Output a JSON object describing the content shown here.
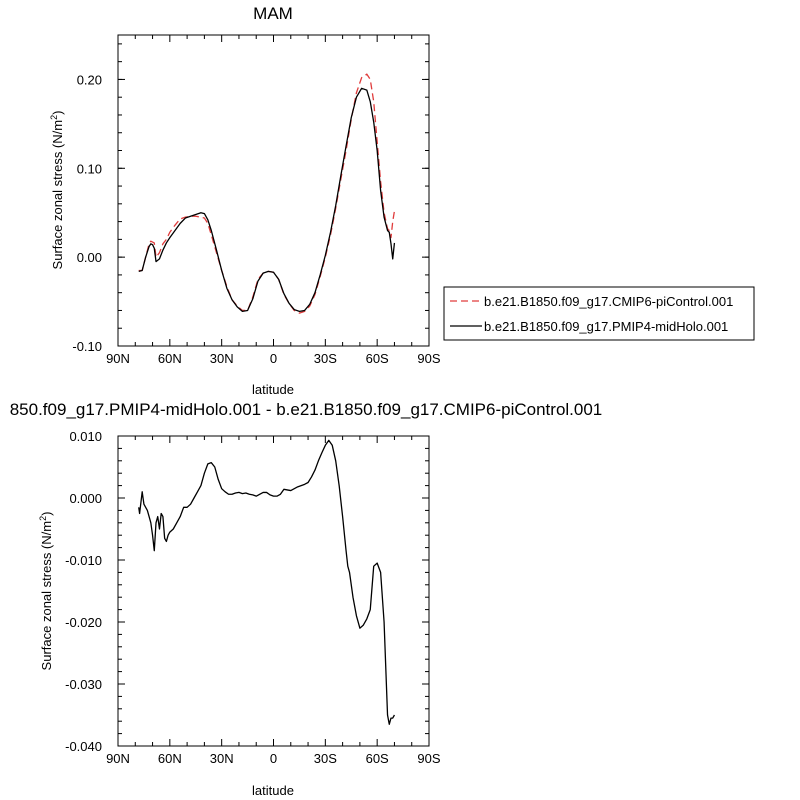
{
  "chart_data": [
    {
      "type": "line",
      "title": "MAM",
      "xlabel": "latitude",
      "ylabel": "Surface zonal stress (N/m",
      "ylabel_sup": "2",
      "ylabel_close": ")",
      "xlim": [
        90,
        -90
      ],
      "ylim": [
        -0.1,
        0.25
      ],
      "xticks": [
        90,
        60,
        30,
        0,
        -30,
        -60,
        -90
      ],
      "xticklabels": [
        "90N",
        "60N",
        "30N",
        "0",
        "30S",
        "60S",
        "90S"
      ],
      "yticks": [
        -0.1,
        0.0,
        0.1,
        0.2
      ],
      "yticklabels": [
        "-0.10",
        "0.00",
        "0.10",
        "0.20"
      ],
      "legend": "right",
      "series": [
        {
          "name": "b.e21.B1850.f09_g17.CMIP6-piControl.001",
          "color": "#e03c3c",
          "dash": "dashed",
          "x": [
            78,
            76,
            74,
            72,
            71,
            70,
            69,
            68,
            66,
            64,
            62,
            60,
            57,
            54,
            51,
            48,
            45,
            42,
            40,
            38,
            36,
            33,
            30,
            27,
            24,
            21,
            18,
            15,
            12,
            9,
            6,
            3,
            0,
            -3,
            -6,
            -9,
            -12,
            -15,
            -18,
            -21,
            -24,
            -27,
            -30,
            -33,
            -36,
            -39,
            -42,
            -45,
            -48,
            -51,
            -54,
            -56,
            -58,
            -60,
            -62,
            -64,
            -66,
            -67,
            -68,
            -69,
            -70
          ],
          "y": [
            -0.015,
            -0.015,
            0.0,
            0.015,
            0.018,
            0.017,
            0.016,
            0.0,
            0.005,
            0.015,
            0.02,
            0.028,
            0.036,
            0.043,
            0.045,
            0.046,
            0.046,
            0.045,
            0.044,
            0.038,
            0.025,
            0.005,
            -0.015,
            -0.033,
            -0.048,
            -0.055,
            -0.06,
            -0.06,
            -0.045,
            -0.025,
            -0.018,
            -0.016,
            -0.017,
            -0.025,
            -0.042,
            -0.052,
            -0.06,
            -0.063,
            -0.061,
            -0.055,
            -0.042,
            -0.022,
            0.0,
            0.025,
            0.055,
            0.088,
            0.12,
            0.155,
            0.185,
            0.202,
            0.206,
            0.2,
            0.175,
            0.13,
            0.085,
            0.05,
            0.032,
            0.03,
            0.022,
            0.04,
            0.052
          ]
        },
        {
          "name": "b.e21.B1850.f09_g17.PMIP4-midHolo.001",
          "color": "#000000",
          "dash": "solid",
          "x": [
            78,
            76,
            74,
            72,
            71,
            70,
            69,
            68,
            66,
            64,
            62,
            60,
            57,
            54,
            51,
            48,
            45,
            42,
            40,
            38,
            36,
            33,
            30,
            27,
            24,
            21,
            18,
            15,
            12,
            9,
            6,
            3,
            0,
            -3,
            -6,
            -9,
            -12,
            -15,
            -18,
            -21,
            -24,
            -27,
            -30,
            -33,
            -36,
            -39,
            -42,
            -45,
            -48,
            -51,
            -54,
            -56,
            -58,
            -60,
            -62,
            -64,
            -66,
            -67,
            -68,
            -69,
            -70
          ],
          "y": [
            -0.016,
            -0.015,
            0.0,
            0.012,
            0.015,
            0.014,
            0.01,
            -0.005,
            -0.002,
            0.008,
            0.016,
            0.022,
            0.03,
            0.038,
            0.044,
            0.046,
            0.048,
            0.05,
            0.049,
            0.042,
            0.03,
            0.008,
            -0.015,
            -0.035,
            -0.048,
            -0.056,
            -0.061,
            -0.06,
            -0.047,
            -0.027,
            -0.018,
            -0.016,
            -0.017,
            -0.025,
            -0.041,
            -0.052,
            -0.059,
            -0.061,
            -0.06,
            -0.053,
            -0.04,
            -0.02,
            0.002,
            0.028,
            0.058,
            0.092,
            0.125,
            0.157,
            0.18,
            0.19,
            0.188,
            0.175,
            0.152,
            0.12,
            0.075,
            0.045,
            0.03,
            0.028,
            0.015,
            -0.002,
            0.016
          ]
        }
      ]
    },
    {
      "type": "line",
      "title": "850.f09_g17.PMIP4-midHolo.001 - b.e21.B1850.f09_g17.CMIP6-piControl.001",
      "xlabel": "latitude",
      "ylabel": "Surface zonal stress (N/m",
      "ylabel_sup": "2",
      "ylabel_close": ")",
      "xlim": [
        90,
        -90
      ],
      "ylim": [
        -0.04,
        0.01
      ],
      "xticks": [
        90,
        60,
        30,
        0,
        -30,
        -60,
        -90
      ],
      "xticklabels": [
        "90N",
        "60N",
        "30N",
        "0",
        "30S",
        "60S",
        "90S"
      ],
      "yticks": [
        -0.04,
        -0.03,
        -0.02,
        -0.01,
        0.0,
        0.01
      ],
      "yticklabels": [
        "-0.040",
        "-0.030",
        "-0.020",
        "-0.010",
        "0.000",
        "0.010"
      ],
      "series": [
        {
          "color": "#000000",
          "dash": "solid",
          "x": [
            78,
            77.5,
            76,
            75,
            74,
            73,
            72,
            71,
            70,
            69,
            68,
            67,
            66,
            65,
            64,
            63,
            62,
            61,
            60,
            58,
            56,
            54,
            52,
            50,
            48,
            46,
            44,
            42,
            40,
            38,
            36,
            34,
            32,
            30,
            28,
            26,
            24,
            22,
            20,
            18,
            16,
            14,
            12,
            10,
            8,
            6,
            4,
            2,
            0,
            -2,
            -4,
            -6,
            -8,
            -10,
            -12,
            -14,
            -16,
            -18,
            -20,
            -22,
            -24,
            -26,
            -28,
            -30,
            -32,
            -34,
            -36,
            -38,
            -40,
            -42,
            -43,
            -44,
            -46,
            -48,
            -50,
            -52,
            -54,
            -56,
            -58,
            -60,
            -62,
            -64,
            -66,
            -67,
            -68,
            -69,
            -70
          ],
          "y": [
            -0.0015,
            -0.0025,
            0.001,
            -0.001,
            -0.0015,
            -0.002,
            -0.003,
            -0.004,
            -0.006,
            -0.0085,
            -0.004,
            -0.003,
            -0.005,
            -0.0025,
            -0.003,
            -0.0065,
            -0.007,
            -0.006,
            -0.0055,
            -0.005,
            -0.004,
            -0.003,
            -0.0015,
            -0.0015,
            -0.001,
            0.0,
            0.001,
            0.002,
            0.004,
            0.0055,
            0.0057,
            0.005,
            0.003,
            0.0015,
            0.001,
            0.0006,
            0.0006,
            0.0008,
            0.0009,
            0.0007,
            0.0008,
            0.0006,
            0.0005,
            0.0003,
            0.0006,
            0.0009,
            0.0009,
            0.0005,
            0.0003,
            0.0003,
            0.0006,
            0.0014,
            0.0013,
            0.0012,
            0.0015,
            0.0018,
            0.002,
            0.0022,
            0.0025,
            0.0034,
            0.0045,
            0.006,
            0.0073,
            0.0085,
            0.0093,
            0.0085,
            0.006,
            0.002,
            -0.003,
            -0.0085,
            -0.011,
            -0.012,
            -0.016,
            -0.019,
            -0.021,
            -0.0205,
            -0.0195,
            -0.018,
            -0.011,
            -0.0105,
            -0.012,
            -0.02,
            -0.035,
            -0.0365,
            -0.0355,
            -0.0355,
            -0.035
          ]
        }
      ]
    }
  ]
}
